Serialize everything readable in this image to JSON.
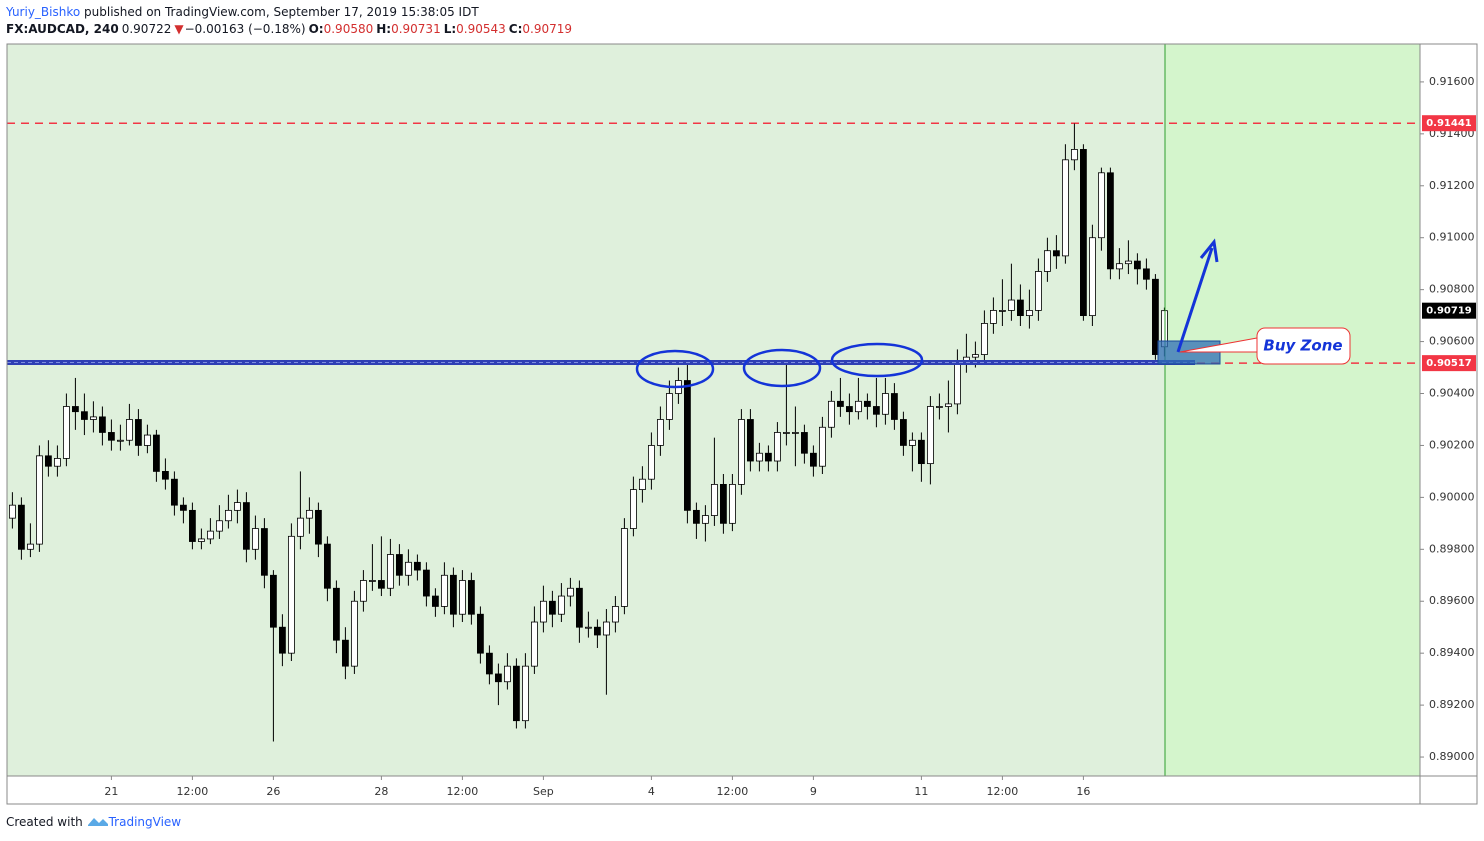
{
  "header": {
    "author": "Yuriy_Bishko",
    "published": " published on TradingView.com, September 17, 2019 15:38:05 IDT",
    "symbol": "FX:AUDCAD, 240",
    "price": "0.90722",
    "arrow": "▼",
    "change": "−0.00163 (−0.18%)",
    "ohlc": [
      {
        "label": "O:",
        "value": "0.90580"
      },
      {
        "label": "H:",
        "value": "0.90731"
      },
      {
        "label": "L:",
        "value": "0.90543"
      },
      {
        "label": "C:",
        "value": "0.90719"
      }
    ]
  },
  "chart_data": {
    "type": "candlestick",
    "up_color": "#ffffff",
    "down_color": "#000000",
    "candles": [
      [
        0.8992,
        0.9002,
        0.8988,
        0.8997
      ],
      [
        0.8997,
        0.9,
        0.8976,
        0.898
      ],
      [
        0.898,
        0.899,
        0.8977,
        0.8982
      ],
      [
        0.8982,
        0.902,
        0.8979,
        0.9016
      ],
      [
        0.9016,
        0.9022,
        0.9008,
        0.9012
      ],
      [
        0.9012,
        0.902,
        0.9008,
        0.9015
      ],
      [
        0.9015,
        0.904,
        0.9012,
        0.9035
      ],
      [
        0.9035,
        0.9046,
        0.9026,
        0.9033
      ],
      [
        0.9033,
        0.904,
        0.9024,
        0.903
      ],
      [
        0.903,
        0.9037,
        0.9025,
        0.9031
      ],
      [
        0.9031,
        0.9035,
        0.902,
        0.9025
      ],
      [
        0.9025,
        0.903,
        0.9018,
        0.9022
      ],
      [
        0.9022,
        0.9028,
        0.9018,
        0.9022
      ],
      [
        0.9022,
        0.9036,
        0.902,
        0.903
      ],
      [
        0.903,
        0.9034,
        0.9016,
        0.902
      ],
      [
        0.902,
        0.9028,
        0.9017,
        0.9024
      ],
      [
        0.9024,
        0.9026,
        0.9006,
        0.901
      ],
      [
        0.901,
        0.9015,
        0.9003,
        0.9007
      ],
      [
        0.9007,
        0.901,
        0.8993,
        0.8997
      ],
      [
        0.8997,
        0.9,
        0.899,
        0.8995
      ],
      [
        0.8995,
        0.8998,
        0.898,
        0.8983
      ],
      [
        0.8983,
        0.8988,
        0.898,
        0.8984
      ],
      [
        0.8984,
        0.8992,
        0.8982,
        0.8987
      ],
      [
        0.8987,
        0.8997,
        0.8984,
        0.8991
      ],
      [
        0.8991,
        0.9001,
        0.8988,
        0.8995
      ],
      [
        0.8995,
        0.9003,
        0.899,
        0.8998
      ],
      [
        0.8998,
        0.9002,
        0.8975,
        0.898
      ],
      [
        0.898,
        0.8993,
        0.8976,
        0.8988
      ],
      [
        0.8988,
        0.8992,
        0.8965,
        0.897
      ],
      [
        0.897,
        0.8972,
        0.8906,
        0.895
      ],
      [
        0.895,
        0.8955,
        0.8935,
        0.894
      ],
      [
        0.894,
        0.899,
        0.8937,
        0.8985
      ],
      [
        0.8985,
        0.901,
        0.898,
        0.8992
      ],
      [
        0.8992,
        0.9,
        0.8986,
        0.8995
      ],
      [
        0.8995,
        0.8998,
        0.8977,
        0.8982
      ],
      [
        0.8982,
        0.8985,
        0.896,
        0.8965
      ],
      [
        0.8965,
        0.8968,
        0.894,
        0.8945
      ],
      [
        0.8945,
        0.895,
        0.893,
        0.8935
      ],
      [
        0.8935,
        0.8964,
        0.8932,
        0.896
      ],
      [
        0.896,
        0.8972,
        0.8956,
        0.8968
      ],
      [
        0.8968,
        0.8982,
        0.8964,
        0.8968
      ],
      [
        0.8968,
        0.8985,
        0.8962,
        0.8965
      ],
      [
        0.8965,
        0.8984,
        0.8962,
        0.8978
      ],
      [
        0.8978,
        0.8982,
        0.8966,
        0.897
      ],
      [
        0.897,
        0.898,
        0.8966,
        0.8975
      ],
      [
        0.8975,
        0.8978,
        0.8968,
        0.8972
      ],
      [
        0.8972,
        0.8975,
        0.8958,
        0.8962
      ],
      [
        0.8962,
        0.8965,
        0.8954,
        0.8958
      ],
      [
        0.8958,
        0.8975,
        0.8955,
        0.897
      ],
      [
        0.897,
        0.8973,
        0.895,
        0.8955
      ],
      [
        0.8955,
        0.8972,
        0.8952,
        0.8968
      ],
      [
        0.8968,
        0.8971,
        0.8951,
        0.8955
      ],
      [
        0.8955,
        0.8958,
        0.8936,
        0.894
      ],
      [
        0.894,
        0.8943,
        0.8928,
        0.8932
      ],
      [
        0.8932,
        0.8936,
        0.892,
        0.8929
      ],
      [
        0.8929,
        0.894,
        0.8926,
        0.8935
      ],
      [
        0.8935,
        0.8938,
        0.8911,
        0.8914
      ],
      [
        0.8914,
        0.894,
        0.8911,
        0.8935
      ],
      [
        0.8935,
        0.8958,
        0.8932,
        0.8952
      ],
      [
        0.8952,
        0.8966,
        0.8948,
        0.896
      ],
      [
        0.896,
        0.8964,
        0.895,
        0.8955
      ],
      [
        0.8955,
        0.8967,
        0.8952,
        0.8962
      ],
      [
        0.8962,
        0.8969,
        0.8958,
        0.8965
      ],
      [
        0.8965,
        0.8968,
        0.8944,
        0.895
      ],
      [
        0.895,
        0.8956,
        0.8946,
        0.895
      ],
      [
        0.895,
        0.8953,
        0.8942,
        0.8947
      ],
      [
        0.8947,
        0.8957,
        0.8924,
        0.8952
      ],
      [
        0.8952,
        0.8962,
        0.8948,
        0.8958
      ],
      [
        0.8958,
        0.8992,
        0.8955,
        0.8988
      ],
      [
        0.8988,
        0.9008,
        0.8985,
        0.9003
      ],
      [
        0.9003,
        0.9012,
        0.8998,
        0.9007
      ],
      [
        0.9007,
        0.9025,
        0.9003,
        0.902
      ],
      [
        0.902,
        0.9035,
        0.9016,
        0.903
      ],
      [
        0.903,
        0.9045,
        0.9026,
        0.904
      ],
      [
        0.904,
        0.905,
        0.9036,
        0.9045
      ],
      [
        0.9045,
        0.9052,
        0.899,
        0.8995
      ],
      [
        0.8995,
        0.8998,
        0.8984,
        0.899
      ],
      [
        0.899,
        0.8997,
        0.8983,
        0.8993
      ],
      [
        0.8993,
        0.9023,
        0.8989,
        0.9005
      ],
      [
        0.9005,
        0.9009,
        0.8986,
        0.899
      ],
      [
        0.899,
        0.9009,
        0.8987,
        0.9005
      ],
      [
        0.9005,
        0.9034,
        0.9001,
        0.903
      ],
      [
        0.903,
        0.9034,
        0.901,
        0.9014
      ],
      [
        0.9014,
        0.9021,
        0.901,
        0.9017
      ],
      [
        0.9017,
        0.902,
        0.901,
        0.9014
      ],
      [
        0.9014,
        0.9029,
        0.901,
        0.9025
      ],
      [
        0.9025,
        0.9052,
        0.902,
        0.9025
      ],
      [
        0.9025,
        0.9035,
        0.9012,
        0.9025
      ],
      [
        0.9025,
        0.9028,
        0.9013,
        0.9017
      ],
      [
        0.9017,
        0.902,
        0.9008,
        0.9012
      ],
      [
        0.9012,
        0.9031,
        0.9009,
        0.9027
      ],
      [
        0.9027,
        0.9041,
        0.9023,
        0.9037
      ],
      [
        0.9037,
        0.9046,
        0.9031,
        0.9035
      ],
      [
        0.9035,
        0.904,
        0.9028,
        0.9033
      ],
      [
        0.9033,
        0.9046,
        0.903,
        0.9037
      ],
      [
        0.9037,
        0.904,
        0.903,
        0.9035
      ],
      [
        0.9035,
        0.9046,
        0.9027,
        0.9032
      ],
      [
        0.9032,
        0.9046,
        0.9028,
        0.904
      ],
      [
        0.904,
        0.9044,
        0.9026,
        0.903
      ],
      [
        0.903,
        0.9033,
        0.9016,
        0.902
      ],
      [
        0.902,
        0.9025,
        0.901,
        0.9022
      ],
      [
        0.9022,
        0.9025,
        0.9006,
        0.9013
      ],
      [
        0.9013,
        0.9039,
        0.9005,
        0.9035
      ],
      [
        0.9035,
        0.904,
        0.903,
        0.9035
      ],
      [
        0.9035,
        0.9045,
        0.9025,
        0.9036
      ],
      [
        0.9036,
        0.9057,
        0.9032,
        0.9052
      ],
      [
        0.9052,
        0.9063,
        0.9048,
        0.9054
      ],
      [
        0.9054,
        0.906,
        0.905,
        0.9055
      ],
      [
        0.9055,
        0.9072,
        0.9052,
        0.9067
      ],
      [
        0.9067,
        0.9077,
        0.9063,
        0.9072
      ],
      [
        0.9072,
        0.9084,
        0.9066,
        0.9072
      ],
      [
        0.9072,
        0.909,
        0.9068,
        0.9076
      ],
      [
        0.9076,
        0.9082,
        0.9066,
        0.907
      ],
      [
        0.907,
        0.908,
        0.9065,
        0.9072
      ],
      [
        0.9072,
        0.9092,
        0.9068,
        0.9087
      ],
      [
        0.9087,
        0.91,
        0.9083,
        0.9095
      ],
      [
        0.9095,
        0.9101,
        0.9088,
        0.9093
      ],
      [
        0.9093,
        0.9136,
        0.909,
        0.913
      ],
      [
        0.913,
        0.9144,
        0.9126,
        0.9134
      ],
      [
        0.9134,
        0.9136,
        0.9068,
        0.907
      ],
      [
        0.907,
        0.9105,
        0.9066,
        0.91
      ],
      [
        0.91,
        0.9127,
        0.9095,
        0.9125
      ],
      [
        0.9125,
        0.9127,
        0.9084,
        0.9088
      ],
      [
        0.9088,
        0.9096,
        0.9084,
        0.909
      ],
      [
        0.909,
        0.9099,
        0.9086,
        0.9091
      ],
      [
        0.9091,
        0.9094,
        0.9082,
        0.9088
      ],
      [
        0.9088,
        0.9092,
        0.908,
        0.9084
      ],
      [
        0.9084,
        0.9086,
        0.9053,
        0.9055
      ],
      [
        0.9058,
        0.90731,
        0.90543,
        0.90719
      ]
    ],
    "xlim": [
      -0.6,
      156.4
    ],
    "xticks": [
      {
        "value": 11,
        "label": "21"
      },
      {
        "value": 20,
        "label": "12:00"
      },
      {
        "value": 29,
        "label": "26"
      },
      {
        "value": 41,
        "label": "28"
      },
      {
        "value": 50,
        "label": "12:00"
      },
      {
        "value": 59,
        "label": "Sep"
      },
      {
        "value": 71,
        "label": "4"
      },
      {
        "value": 80,
        "label": "12:00"
      },
      {
        "value": 89,
        "label": "9"
      },
      {
        "value": 101,
        "label": "11"
      },
      {
        "value": 110,
        "label": "12:00"
      },
      {
        "value": 119,
        "label": "16"
      }
    ],
    "ylim": [
      0.88927,
      0.91746
    ],
    "yticks": [
      {
        "value": 0.89,
        "label": "0.89000"
      },
      {
        "value": 0.892,
        "label": "0.89200"
      },
      {
        "value": 0.894,
        "label": "0.89400"
      },
      {
        "value": 0.896,
        "label": "0.89600"
      },
      {
        "value": 0.898,
        "label": "0.89800"
      },
      {
        "value": 0.9,
        "label": "0.90000"
      },
      {
        "value": 0.902,
        "label": "0.90200"
      },
      {
        "value": 0.904,
        "label": "0.90400"
      },
      {
        "value": 0.906,
        "label": "0.90600"
      },
      {
        "value": 0.908,
        "label": "0.90800"
      },
      {
        "value": 0.91,
        "label": "0.91000"
      },
      {
        "value": 0.912,
        "label": "0.91200"
      },
      {
        "value": 0.914,
        "label": "0.91400"
      },
      {
        "value": 0.916,
        "label": "0.91600"
      }
    ],
    "levels": [
      {
        "value": 0.91441,
        "label": "0.91441",
        "color": "#f23645",
        "line": true
      },
      {
        "value": 0.90719,
        "label": "0.90719",
        "color": "#000000",
        "line": false
      },
      {
        "value": 0.90517,
        "label": "0.90517",
        "color": "#f23645",
        "line": true
      }
    ],
    "annotation": "Buy Zone"
  },
  "footer": {
    "created": "Created with",
    "brand": "TradingView"
  }
}
